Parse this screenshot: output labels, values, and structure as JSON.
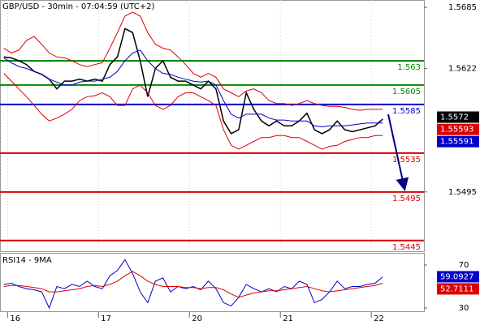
{
  "chart_data": [
    {
      "type": "line",
      "title": "GBP/USD - 30min - 07:04:59 (UTC+2)",
      "x": [
        -1,
        1,
        3,
        5,
        7,
        9,
        11,
        13,
        15,
        17,
        19,
        21,
        23,
        25,
        27,
        29,
        31,
        33,
        35,
        37,
        39,
        41,
        43,
        45,
        47,
        49,
        51,
        53,
        55,
        57,
        59,
        61,
        63,
        65,
        67,
        69,
        71,
        73,
        75,
        77,
        79,
        81,
        83,
        85,
        87,
        89,
        91,
        93,
        95,
        97,
        99
      ],
      "xlim": [
        -2,
        109.9
      ],
      "xticks": [
        {
          "value": 0,
          "label": "16"
        },
        {
          "value": 24,
          "label": "17"
        },
        {
          "value": 48,
          "label": "20"
        },
        {
          "value": 72,
          "label": "21"
        },
        {
          "value": 96,
          "label": "22"
        }
      ],
      "ylim": [
        1.5434,
        1.56925
      ],
      "yticks": [
        1.5685,
        1.5622,
        1.5495
      ],
      "grid": true,
      "series": [
        {
          "name": "GBP/USD",
          "color": "#000000",
          "values": [
            1.5634,
            1.5633,
            1.563,
            1.5626,
            1.5619,
            1.5616,
            1.5611,
            1.5601,
            1.5609,
            1.5609,
            1.5611,
            1.5609,
            1.5611,
            1.5609,
            1.5626,
            1.5634,
            1.5663,
            1.5659,
            1.563,
            1.5593,
            1.5622,
            1.563,
            1.5613,
            1.5609,
            1.5609,
            1.5605,
            1.5601,
            1.5609,
            1.5601,
            1.5568,
            1.5555,
            1.5559,
            1.5597,
            1.558,
            1.5568,
            1.5563,
            1.5568,
            1.5563,
            1.5563,
            1.5568,
            1.5576,
            1.5559,
            1.5555,
            1.5559,
            1.5568,
            1.5559,
            1.5557,
            1.5559,
            1.5561,
            1.5563,
            1.557
          ]
        },
        {
          "name": "Upper band",
          "color": "#dd0000",
          "values": [
            1.5643,
            1.5638,
            1.5641,
            1.5651,
            1.5655,
            1.5647,
            1.5638,
            1.5634,
            1.5633,
            1.563,
            1.5626,
            1.5624,
            1.5626,
            1.5628,
            1.5643,
            1.5659,
            1.5676,
            1.568,
            1.5676,
            1.5659,
            1.5647,
            1.5643,
            1.5641,
            1.5634,
            1.5626,
            1.5617,
            1.5613,
            1.5617,
            1.5613,
            1.5601,
            1.5597,
            1.5593,
            1.5599,
            1.5601,
            1.5597,
            1.5589,
            1.5586,
            1.5586,
            1.5584,
            1.5586,
            1.5589,
            1.5586,
            1.5584,
            1.5583,
            1.5583,
            1.5582,
            1.558,
            1.5579,
            1.558,
            1.558,
            1.558
          ]
        },
        {
          "name": "Lower band",
          "color": "#dd0000",
          "values": [
            1.5617,
            1.5609,
            1.5601,
            1.5593,
            1.5584,
            1.5575,
            1.5568,
            1.5571,
            1.5575,
            1.558,
            1.5589,
            1.5593,
            1.5594,
            1.5597,
            1.5593,
            1.5584,
            1.5584,
            1.5601,
            1.5605,
            1.5597,
            1.5584,
            1.558,
            1.5584,
            1.5593,
            1.5597,
            1.5597,
            1.5593,
            1.5589,
            1.5584,
            1.5559,
            1.5543,
            1.5539,
            1.5543,
            1.5547,
            1.5551,
            1.5551,
            1.5553,
            1.5553,
            1.5551,
            1.5551,
            1.5547,
            1.5543,
            1.5539,
            1.5542,
            1.5543,
            1.5547,
            1.5549,
            1.5551,
            1.5551,
            1.5553,
            1.5553
          ]
        },
        {
          "name": "Moving average",
          "color": "#0000cc",
          "values": [
            1.5633,
            1.5628,
            1.5624,
            1.5622,
            1.5619,
            1.5616,
            1.5611,
            1.5608,
            1.5605,
            1.5605,
            1.5608,
            1.5609,
            1.5609,
            1.5611,
            1.5613,
            1.5619,
            1.563,
            1.5638,
            1.5641,
            1.563,
            1.5622,
            1.5617,
            1.5616,
            1.5613,
            1.5611,
            1.5609,
            1.5608,
            1.5609,
            1.5605,
            1.5589,
            1.5575,
            1.5571,
            1.5575,
            1.5575,
            1.5575,
            1.5571,
            1.5569,
            1.5569,
            1.5568,
            1.5568,
            1.5568,
            1.5563,
            1.5562,
            1.5563,
            1.5563,
            1.5563,
            1.5564,
            1.5565,
            1.5566,
            1.5566,
            1.5566
          ]
        }
      ],
      "levels": [
        {
          "value": 1.563,
          "color": "#008800"
        },
        {
          "value": 1.5605,
          "color": "#008800"
        },
        {
          "value": 1.5585,
          "color": "#0000cc"
        },
        {
          "value": 1.5535,
          "color": "#dd0000"
        },
        {
          "value": 1.5495,
          "color": "#dd0000"
        },
        {
          "value": 1.5445,
          "color": "#dd0000"
        }
      ],
      "price_tags": [
        {
          "value": 1.5572,
          "color": "#000000"
        },
        {
          "value": 1.55593,
          "color": "#dd0000"
        },
        {
          "value": 1.55591,
          "color": "#0000cc"
        }
      ]
    },
    {
      "type": "line",
      "title": "RSI14 - 9MA",
      "x": [
        -1,
        1,
        3,
        5,
        7,
        9,
        11,
        13,
        15,
        17,
        19,
        21,
        23,
        25,
        27,
        29,
        31,
        33,
        35,
        37,
        39,
        41,
        43,
        45,
        47,
        49,
        51,
        53,
        55,
        57,
        59,
        61,
        63,
        65,
        67,
        69,
        71,
        73,
        75,
        77,
        79,
        81,
        83,
        85,
        87,
        89,
        91,
        93,
        95,
        97,
        99
      ],
      "xlim": [
        -2,
        109.9
      ],
      "ylim": [
        27,
        81.3
      ],
      "yticks": [
        70,
        30
      ],
      "series": [
        {
          "name": "RSI14",
          "color": "#0000cc",
          "values": [
            52,
            53,
            50,
            48,
            47,
            45,
            30,
            50,
            48,
            52,
            50,
            55,
            50,
            48,
            60,
            65,
            75,
            62,
            45,
            35,
            55,
            58,
            45,
            50,
            48,
            50,
            47,
            55,
            48,
            35,
            32,
            40,
            52,
            48,
            45,
            48,
            45,
            50,
            48,
            55,
            52,
            35,
            38,
            45,
            55,
            48,
            50,
            50,
            52,
            53,
            59
          ]
        },
        {
          "name": "9MA",
          "color": "#dd0000",
          "values": [
            50,
            51,
            51,
            50,
            49,
            48,
            45,
            45,
            46,
            47,
            48,
            50,
            51,
            50,
            52,
            55,
            60,
            64,
            60,
            55,
            52,
            50,
            50,
            50,
            49,
            49,
            48,
            49,
            49,
            47,
            43,
            40,
            42,
            44,
            45,
            46,
            46,
            47,
            48,
            49,
            50,
            48,
            46,
            45,
            46,
            47,
            48,
            49,
            50,
            51,
            53
          ]
        }
      ],
      "price_tags": [
        {
          "value": 59.0927,
          "color": "#0000cc"
        },
        {
          "value": 52.7111,
          "color": "#dd0000"
        }
      ]
    }
  ]
}
